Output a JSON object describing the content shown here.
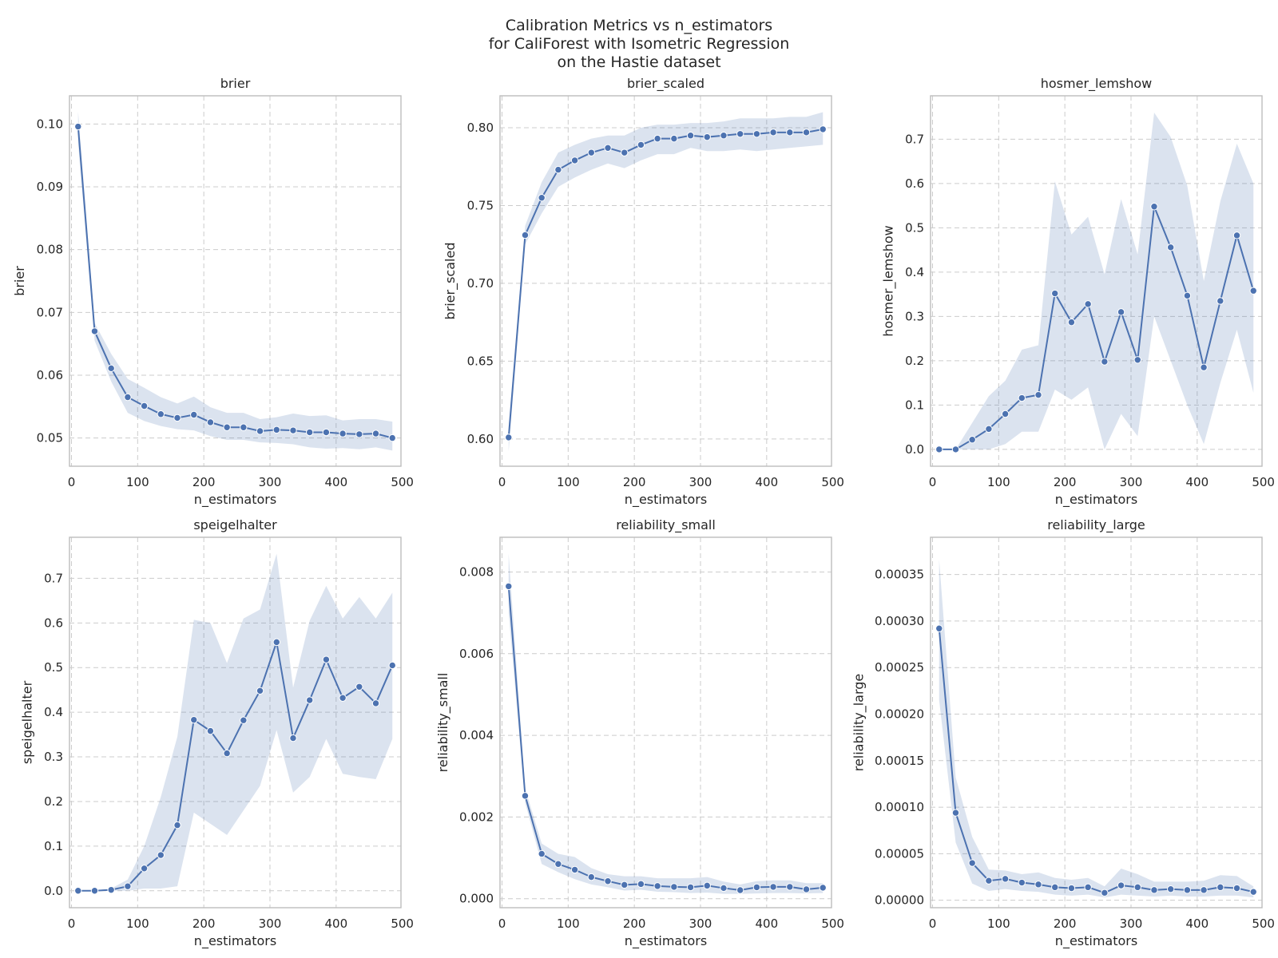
{
  "figure": {
    "title_lines": [
      "Calibration Metrics vs n_estimators",
      "for CaliForest with Isometric Regression",
      "on the Hastie dataset"
    ]
  },
  "colors": {
    "line": "#4c72b0",
    "band": "#4c72b0",
    "band_opacity": 0.2,
    "grid": "#cccccc",
    "frame": "#bdbdbd",
    "text": "#262626"
  },
  "chart_data": [
    {
      "type": "line",
      "title": "brier",
      "xlabel": "n_estimators",
      "ylabel": "brier",
      "xlim": [
        -3,
        498
      ],
      "ylim": [
        0.0455,
        0.1045
      ],
      "xticks": [
        0,
        100,
        200,
        300,
        400,
        500
      ],
      "yticks": [
        0.05,
        0.06,
        0.07,
        0.08,
        0.09,
        0.1
      ],
      "ytick_labels": [
        "0.05",
        "0.06",
        "0.07",
        "0.08",
        "0.09",
        "0.10"
      ],
      "grid": true,
      "x": [
        10,
        35,
        60,
        85,
        110,
        135,
        160,
        185,
        210,
        235,
        260,
        285,
        310,
        335,
        360,
        385,
        410,
        435,
        460,
        485
      ],
      "y": [
        0.0996,
        0.067,
        0.0611,
        0.0565,
        0.0551,
        0.0538,
        0.0532,
        0.0537,
        0.0525,
        0.0517,
        0.0517,
        0.0511,
        0.0513,
        0.0512,
        0.0509,
        0.0509,
        0.0507,
        0.0506,
        0.0507,
        0.05
      ],
      "ci_low": [
        0.097,
        0.0655,
        0.059,
        0.054,
        0.0527,
        0.0519,
        0.0514,
        0.0512,
        0.0503,
        0.0497,
        0.0497,
        0.0493,
        0.0492,
        0.049,
        0.0485,
        0.0483,
        0.0484,
        0.0482,
        0.0485,
        0.048
      ],
      "ci_high": [
        0.102,
        0.0683,
        0.0634,
        0.0594,
        0.058,
        0.0565,
        0.0555,
        0.0566,
        0.0549,
        0.054,
        0.054,
        0.053,
        0.0533,
        0.0539,
        0.0535,
        0.0536,
        0.0528,
        0.053,
        0.053,
        0.0526
      ]
    },
    {
      "type": "line",
      "title": "brier_scaled",
      "xlabel": "n_estimators",
      "ylabel": "brier_scaled",
      "xlim": [
        -3,
        498
      ],
      "ylim": [
        0.5825,
        0.8205
      ],
      "xticks": [
        0,
        100,
        200,
        300,
        400,
        500
      ],
      "yticks": [
        0.6,
        0.65,
        0.7,
        0.75,
        0.8
      ],
      "ytick_labels": [
        "0.60",
        "0.65",
        "0.70",
        "0.75",
        "0.80"
      ],
      "grid": true,
      "x": [
        10,
        35,
        60,
        85,
        110,
        135,
        160,
        185,
        210,
        235,
        260,
        285,
        310,
        335,
        360,
        385,
        410,
        435,
        460,
        485
      ],
      "y": [
        0.601,
        0.731,
        0.755,
        0.773,
        0.779,
        0.784,
        0.787,
        0.784,
        0.789,
        0.793,
        0.793,
        0.795,
        0.794,
        0.795,
        0.796,
        0.796,
        0.797,
        0.797,
        0.797,
        0.799
      ],
      "ci_low": [
        0.592,
        0.725,
        0.745,
        0.762,
        0.768,
        0.773,
        0.777,
        0.774,
        0.779,
        0.783,
        0.783,
        0.787,
        0.785,
        0.785,
        0.786,
        0.785,
        0.786,
        0.787,
        0.788,
        0.789
      ],
      "ci_high": [
        0.608,
        0.737,
        0.765,
        0.784,
        0.789,
        0.793,
        0.795,
        0.795,
        0.8,
        0.802,
        0.802,
        0.803,
        0.803,
        0.804,
        0.806,
        0.806,
        0.806,
        0.807,
        0.807,
        0.81
      ]
    },
    {
      "type": "line",
      "title": "hosmer_lemshow",
      "xlabel": "n_estimators",
      "ylabel": "hosmer_lemshow",
      "xlim": [
        -3,
        498
      ],
      "ylim": [
        -0.038,
        0.798
      ],
      "xticks": [
        0,
        100,
        200,
        300,
        400,
        500
      ],
      "yticks": [
        0.0,
        0.1,
        0.2,
        0.3,
        0.4,
        0.5,
        0.6,
        0.7
      ],
      "ytick_labels": [
        "0.0",
        "0.1",
        "0.2",
        "0.3",
        "0.4",
        "0.5",
        "0.6",
        "0.7"
      ],
      "grid": true,
      "x": [
        10,
        35,
        60,
        85,
        110,
        135,
        160,
        185,
        210,
        235,
        260,
        285,
        310,
        335,
        360,
        385,
        410,
        435,
        460,
        485
      ],
      "y": [
        0.0,
        0.0,
        0.022,
        0.046,
        0.08,
        0.116,
        0.123,
        0.352,
        0.287,
        0.328,
        0.198,
        0.31,
        0.202,
        0.548,
        0.456,
        0.347,
        0.185,
        0.335,
        0.483,
        0.358
      ],
      "ci_low": [
        0.0,
        0.0,
        0.0,
        0.0,
        0.012,
        0.04,
        0.04,
        0.135,
        0.112,
        0.14,
        0.0,
        0.08,
        0.03,
        0.3,
        0.2,
        0.1,
        0.012,
        0.15,
        0.27,
        0.128
      ],
      "ci_high": [
        0.0,
        0.0,
        0.06,
        0.12,
        0.155,
        0.225,
        0.235,
        0.605,
        0.485,
        0.525,
        0.395,
        0.565,
        0.44,
        0.76,
        0.705,
        0.595,
        0.38,
        0.56,
        0.69,
        0.6
      ]
    },
    {
      "type": "line",
      "title": "speigelhalter",
      "xlabel": "n_estimators",
      "ylabel": "speigelhalter",
      "xlim": [
        -3,
        498
      ],
      "ylim": [
        -0.038,
        0.792
      ],
      "xticks": [
        0,
        100,
        200,
        300,
        400,
        500
      ],
      "yticks": [
        0.0,
        0.1,
        0.2,
        0.3,
        0.4,
        0.5,
        0.6,
        0.7
      ],
      "ytick_labels": [
        "0.0",
        "0.1",
        "0.2",
        "0.3",
        "0.4",
        "0.5",
        "0.6",
        "0.7"
      ],
      "grid": true,
      "x": [
        10,
        35,
        60,
        85,
        110,
        135,
        160,
        185,
        210,
        235,
        260,
        285,
        310,
        335,
        360,
        385,
        410,
        435,
        460,
        485
      ],
      "y": [
        0.0,
        0.0,
        0.002,
        0.01,
        0.05,
        0.08,
        0.147,
        0.383,
        0.358,
        0.308,
        0.382,
        0.448,
        0.557,
        0.342,
        0.427,
        0.518,
        0.432,
        0.457,
        0.42,
        0.505
      ],
      "ci_low": [
        0.0,
        0.0,
        0.0,
        0.0,
        0.005,
        0.005,
        0.01,
        0.175,
        0.15,
        0.125,
        0.18,
        0.235,
        0.36,
        0.22,
        0.255,
        0.34,
        0.262,
        0.255,
        0.25,
        0.34
      ],
      "ci_high": [
        0.0,
        0.0,
        0.005,
        0.025,
        0.1,
        0.21,
        0.345,
        0.607,
        0.6,
        0.51,
        0.61,
        0.63,
        0.755,
        0.455,
        0.605,
        0.683,
        0.61,
        0.658,
        0.61,
        0.668
      ]
    },
    {
      "type": "line",
      "title": "reliability_small",
      "xlabel": "n_estimators",
      "ylabel": "reliability_small",
      "xlim": [
        -3,
        498
      ],
      "ylim": [
        -0.00022,
        0.00885
      ],
      "xticks": [
        0,
        100,
        200,
        300,
        400,
        500
      ],
      "yticks": [
        0.0,
        0.002,
        0.004,
        0.006,
        0.008
      ],
      "ytick_labels": [
        "0.000",
        "0.002",
        "0.004",
        "0.006",
        "0.008"
      ],
      "grid": true,
      "x": [
        10,
        35,
        60,
        85,
        110,
        135,
        160,
        185,
        210,
        235,
        260,
        285,
        310,
        335,
        360,
        385,
        410,
        435,
        460,
        485
      ],
      "y": [
        0.00765,
        0.00252,
        0.0011,
        0.00085,
        0.00071,
        0.00053,
        0.00043,
        0.00034,
        0.00036,
        0.00031,
        0.00029,
        0.00028,
        0.00032,
        0.00026,
        0.00021,
        0.00028,
        0.00029,
        0.00029,
        0.00023,
        0.00027
      ],
      "ci_low": [
        0.007,
        0.00235,
        0.00085,
        0.00065,
        0.00048,
        0.00035,
        0.00028,
        0.0002,
        0.00022,
        0.00017,
        0.00016,
        0.00014,
        0.00015,
        0.00012,
        0.00012,
        0.00013,
        0.00014,
        0.00014,
        0.00013,
        0.00014
      ],
      "ci_high": [
        0.00845,
        0.0027,
        0.00135,
        0.0011,
        0.00102,
        0.00075,
        0.0006,
        0.00055,
        0.00055,
        0.0005,
        0.0005,
        0.0005,
        0.00053,
        0.00042,
        0.00035,
        0.00043,
        0.00045,
        0.00045,
        0.00038,
        0.00038
      ]
    },
    {
      "type": "line",
      "title": "reliability_large",
      "xlabel": "n_estimators",
      "ylabel": "reliability_large",
      "xlim": [
        -3,
        498
      ],
      "ylim": [
        -8e-06,
        0.00039
      ],
      "xticks": [
        0,
        100,
        200,
        300,
        400,
        500
      ],
      "yticks": [
        0.0,
        5e-05,
        0.0001,
        0.00015,
        0.0002,
        0.00025,
        0.0003,
        0.00035
      ],
      "ytick_labels": [
        "0.00000",
        "0.00005",
        "0.00010",
        "0.00015",
        "0.00020",
        "0.00025",
        "0.00030",
        "0.00035"
      ],
      "grid": true,
      "x": [
        10,
        35,
        60,
        85,
        110,
        135,
        160,
        185,
        210,
        235,
        260,
        285,
        310,
        335,
        360,
        385,
        410,
        435,
        460,
        485
      ],
      "y": [
        0.000292,
        9.4e-05,
        4e-05,
        2.1e-05,
        2.3e-05,
        1.9e-05,
        1.7e-05,
        1.4e-05,
        1.3e-05,
        1.4e-05,
        8e-06,
        1.6e-05,
        1.4e-05,
        1.1e-05,
        1.2e-05,
        1.1e-05,
        1.1e-05,
        1.4e-05,
        1.3e-05,
        9e-06
      ],
      "ci_low": [
        0.000215,
        6.2e-05,
        1.8e-05,
        1e-05,
        1.2e-05,
        1e-05,
        9e-06,
        6e-06,
        5e-06,
        6e-06,
        3e-06,
        6e-06,
        5e-06,
        4e-06,
        5e-06,
        4e-06,
        4e-06,
        5e-06,
        5e-06,
        3e-06
      ],
      "ci_high": [
        0.000366,
        0.000132,
        6.8e-05,
        3.3e-05,
        3.2e-05,
        2.8e-05,
        3e-05,
        2.4e-05,
        2.2e-05,
        2.4e-05,
        1.5e-05,
        3.4e-05,
        2.8e-05,
        2e-05,
        2e-05,
        2e-05,
        2.1e-05,
        2.7e-05,
        2.6e-05,
        1.5e-05
      ]
    }
  ]
}
